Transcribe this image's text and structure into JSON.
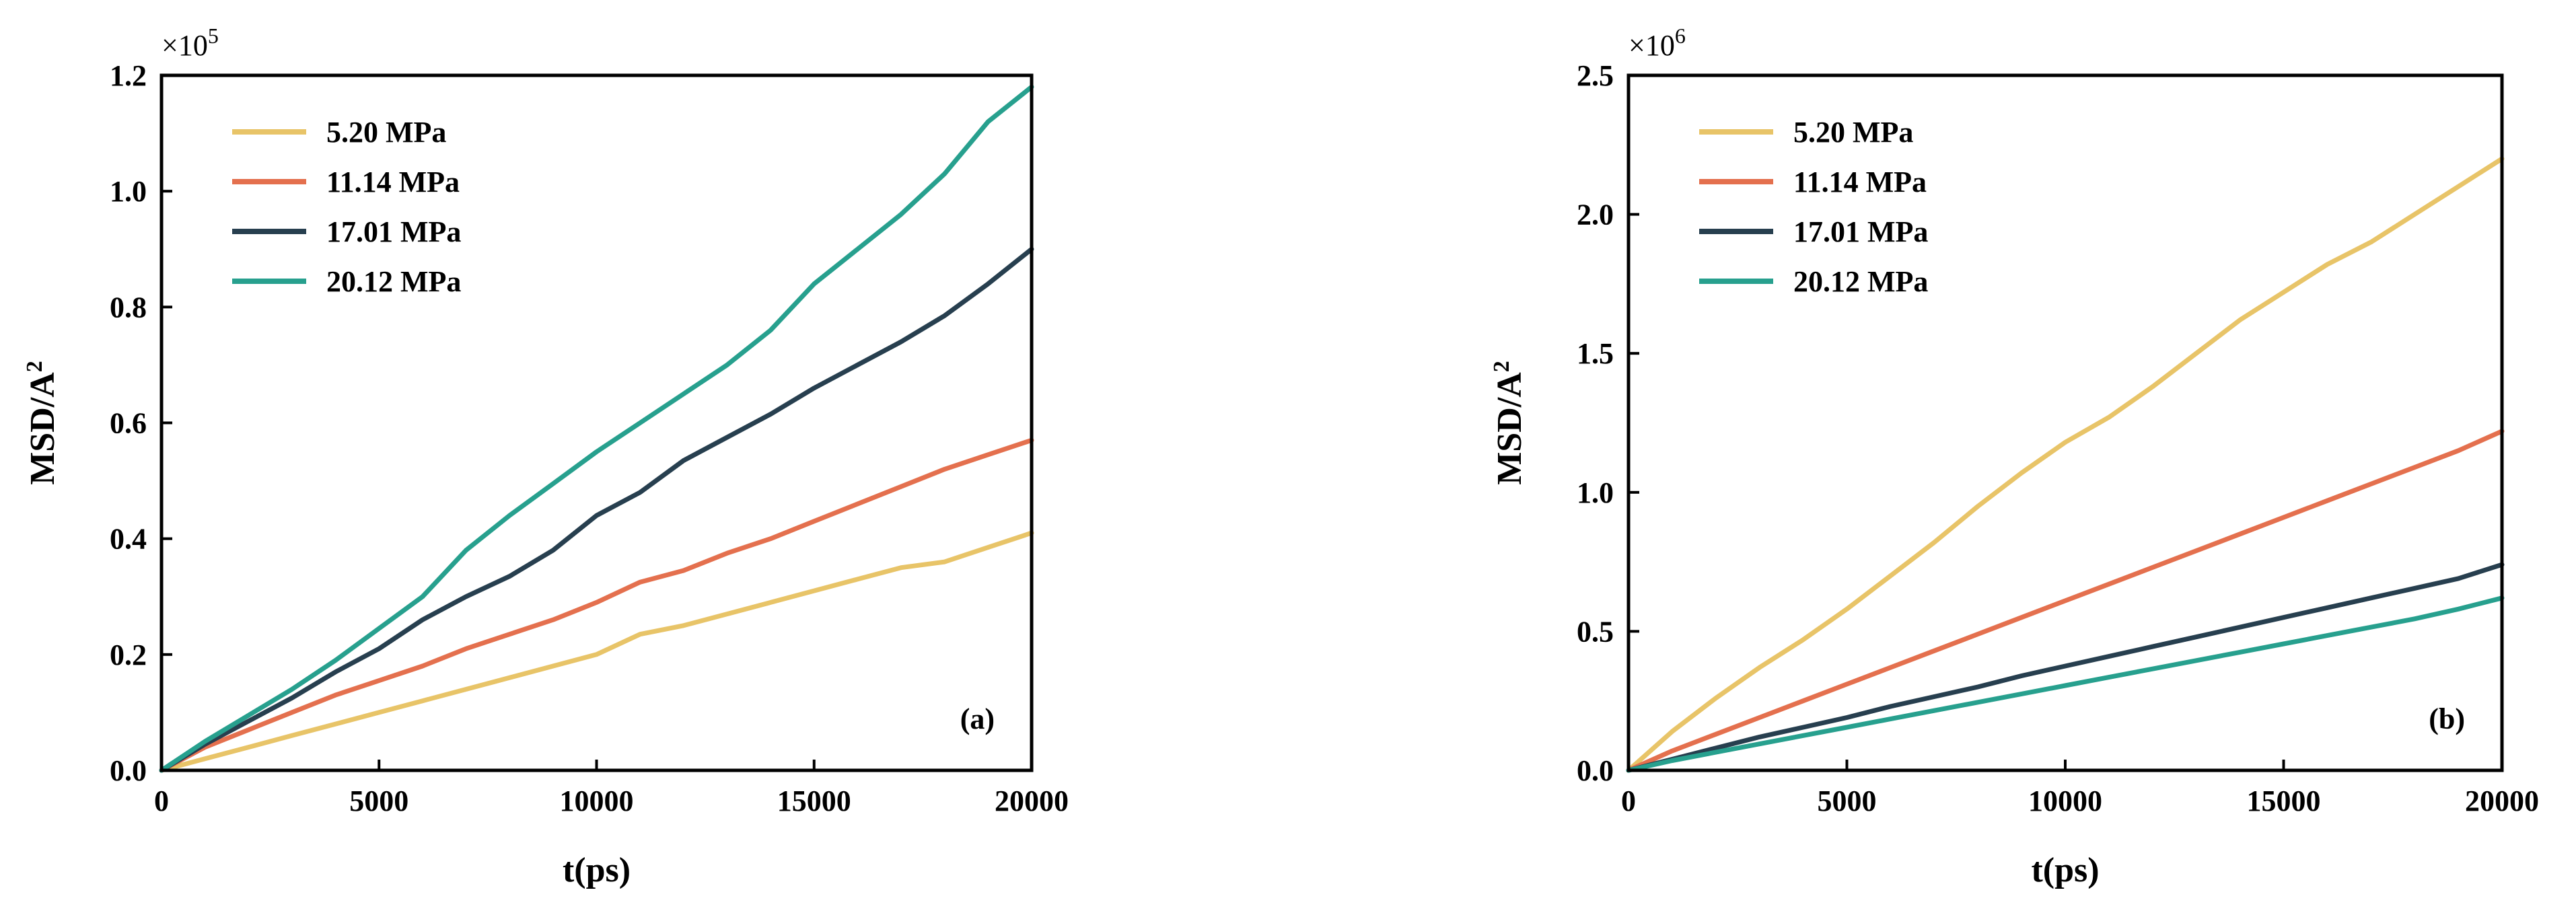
{
  "chart_data": [
    {
      "type": "line",
      "panel_label": "(a)",
      "xlabel": "t(ps)",
      "ylabel": "MSD/A",
      "ylabel_sup": "2",
      "multiplier_base": "×10",
      "multiplier_exp": "5",
      "xlim": [
        0,
        20000
      ],
      "ylim": [
        0,
        1.2
      ],
      "xticks": [
        0,
        5000,
        10000,
        15000,
        20000
      ],
      "xtick_labels": [
        "0",
        "5000",
        "10000",
        "15000",
        "20000"
      ],
      "yticks": [
        0.0,
        0.2,
        0.4,
        0.6,
        0.8,
        1.0,
        1.2
      ],
      "ytick_labels": [
        "0.0",
        "0.2",
        "0.4",
        "0.6",
        "0.8",
        "1.0",
        "1.2"
      ],
      "legend_position": "top-left",
      "series": [
        {
          "name": "5.20 MPa",
          "color": "#E8C468",
          "x": [
            0,
            1000,
            2000,
            3000,
            4000,
            5000,
            6000,
            7000,
            8000,
            9000,
            10000,
            11000,
            12000,
            13000,
            14000,
            15000,
            16000,
            17000,
            18000,
            19000,
            20000
          ],
          "y": [
            0,
            0.02,
            0.04,
            0.06,
            0.08,
            0.1,
            0.12,
            0.14,
            0.16,
            0.18,
            0.2,
            0.235,
            0.25,
            0.27,
            0.29,
            0.31,
            0.33,
            0.35,
            0.36,
            0.385,
            0.41
          ]
        },
        {
          "name": "11.14 MPa",
          "color": "#E4704E",
          "x": [
            0,
            1000,
            2000,
            3000,
            4000,
            5000,
            6000,
            7000,
            8000,
            9000,
            10000,
            11000,
            12000,
            13000,
            14000,
            15000,
            16000,
            17000,
            18000,
            19000,
            20000
          ],
          "y": [
            0,
            0.04,
            0.07,
            0.1,
            0.13,
            0.155,
            0.18,
            0.21,
            0.235,
            0.26,
            0.29,
            0.325,
            0.345,
            0.375,
            0.4,
            0.43,
            0.46,
            0.49,
            0.52,
            0.545,
            0.57
          ]
        },
        {
          "name": "17.01 MPa",
          "color": "#273F4F",
          "x": [
            0,
            1000,
            2000,
            3000,
            4000,
            5000,
            6000,
            7000,
            8000,
            9000,
            10000,
            11000,
            12000,
            13000,
            14000,
            15000,
            16000,
            17000,
            18000,
            19000,
            20000
          ],
          "y": [
            0,
            0.045,
            0.085,
            0.125,
            0.17,
            0.21,
            0.26,
            0.3,
            0.335,
            0.38,
            0.44,
            0.48,
            0.535,
            0.575,
            0.615,
            0.66,
            0.7,
            0.74,
            0.785,
            0.84,
            0.9
          ]
        },
        {
          "name": "20.12 MPa",
          "color": "#27A08E",
          "x": [
            0,
            1000,
            2000,
            3000,
            4000,
            5000,
            6000,
            7000,
            8000,
            9000,
            10000,
            11000,
            12000,
            13000,
            14000,
            15000,
            16000,
            17000,
            18000,
            19000,
            20000
          ],
          "y": [
            0,
            0.05,
            0.095,
            0.14,
            0.19,
            0.245,
            0.3,
            0.38,
            0.44,
            0.495,
            0.55,
            0.6,
            0.65,
            0.7,
            0.76,
            0.84,
            0.9,
            0.96,
            1.03,
            1.12,
            1.18
          ]
        }
      ]
    },
    {
      "type": "line",
      "panel_label": "(b)",
      "xlabel": "t(ps)",
      "ylabel": "MSD/A",
      "ylabel_sup": "2",
      "multiplier_base": "×10",
      "multiplier_exp": "6",
      "xlim": [
        0,
        20000
      ],
      "ylim": [
        0,
        2.5
      ],
      "xticks": [
        0,
        5000,
        10000,
        15000,
        20000
      ],
      "xtick_labels": [
        "0",
        "5000",
        "10000",
        "15000",
        "20000"
      ],
      "yticks": [
        0.0,
        0.5,
        1.0,
        1.5,
        2.0,
        2.5
      ],
      "ytick_labels": [
        "0.0",
        "0.5",
        "1.0",
        "1.5",
        "2.0",
        "2.5"
      ],
      "legend_position": "top-left",
      "series": [
        {
          "name": "5.20 MPa",
          "color": "#E8C468",
          "x": [
            0,
            1000,
            2000,
            3000,
            4000,
            5000,
            6000,
            7000,
            8000,
            9000,
            10000,
            11000,
            12000,
            13000,
            14000,
            15000,
            16000,
            17000,
            18000,
            19000,
            20000
          ],
          "y": [
            0,
            0.14,
            0.26,
            0.37,
            0.47,
            0.58,
            0.7,
            0.82,
            0.95,
            1.07,
            1.18,
            1.27,
            1.38,
            1.5,
            1.62,
            1.72,
            1.82,
            1.9,
            2.0,
            2.1,
            2.2
          ]
        },
        {
          "name": "11.14 MPa",
          "color": "#E4704E",
          "x": [
            0,
            1000,
            2000,
            3000,
            4000,
            5000,
            6000,
            7000,
            8000,
            9000,
            10000,
            11000,
            12000,
            13000,
            14000,
            15000,
            16000,
            17000,
            18000,
            19000,
            20000
          ],
          "y": [
            0,
            0.07,
            0.13,
            0.19,
            0.25,
            0.31,
            0.37,
            0.43,
            0.49,
            0.55,
            0.61,
            0.67,
            0.73,
            0.79,
            0.85,
            0.91,
            0.97,
            1.03,
            1.09,
            1.15,
            1.22
          ]
        },
        {
          "name": "17.01 MPa",
          "color": "#273F4F",
          "x": [
            0,
            1000,
            2000,
            3000,
            4000,
            5000,
            6000,
            7000,
            8000,
            9000,
            10000,
            11000,
            12000,
            13000,
            14000,
            15000,
            16000,
            17000,
            18000,
            19000,
            20000
          ],
          "y": [
            0,
            0.04,
            0.08,
            0.12,
            0.155,
            0.19,
            0.23,
            0.265,
            0.3,
            0.34,
            0.375,
            0.41,
            0.445,
            0.48,
            0.515,
            0.55,
            0.585,
            0.62,
            0.655,
            0.69,
            0.74
          ]
        },
        {
          "name": "20.12 MPa",
          "color": "#27A08E",
          "x": [
            0,
            1000,
            2000,
            3000,
            4000,
            5000,
            6000,
            7000,
            8000,
            9000,
            10000,
            11000,
            12000,
            13000,
            14000,
            15000,
            16000,
            17000,
            18000,
            19000,
            20000
          ],
          "y": [
            0,
            0.035,
            0.065,
            0.095,
            0.125,
            0.155,
            0.185,
            0.215,
            0.245,
            0.275,
            0.305,
            0.335,
            0.365,
            0.395,
            0.425,
            0.455,
            0.485,
            0.515,
            0.545,
            0.58,
            0.62
          ]
        }
      ]
    }
  ]
}
